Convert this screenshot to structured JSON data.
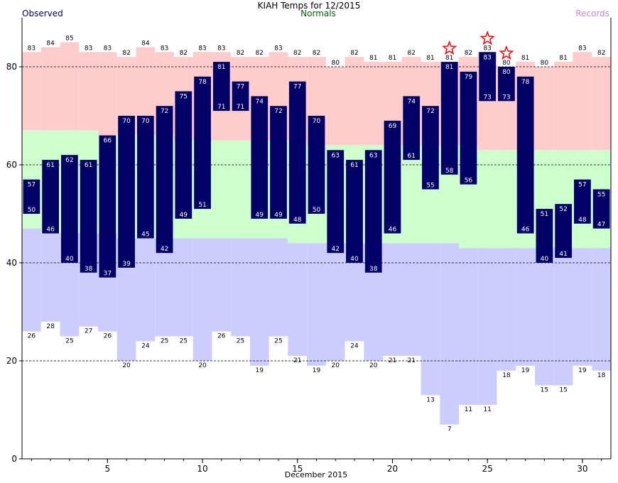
{
  "chart_data": {
    "type": "bar",
    "title": "KIAH Temps for 12/2015",
    "xlabel": "December 2015",
    "ylabel": "",
    "legend": {
      "observed": "Observed",
      "normals": "Normals",
      "records": "Records"
    },
    "ylim": [
      0,
      90
    ],
    "xlim": [
      0.5,
      31.5
    ],
    "y_ticks": [
      0,
      20,
      40,
      60,
      80
    ],
    "x_ticks": [
      5,
      10,
      15,
      20,
      25,
      30
    ],
    "days": [
      1,
      2,
      3,
      4,
      5,
      6,
      7,
      8,
      9,
      10,
      11,
      12,
      13,
      14,
      15,
      16,
      17,
      18,
      19,
      20,
      21,
      22,
      23,
      24,
      25,
      26,
      27,
      28,
      29,
      30,
      31
    ],
    "series": [
      {
        "name": "Observed High",
        "values": [
          57,
          61,
          62,
          61,
          66,
          70,
          70,
          72,
          75,
          78,
          81,
          77,
          74,
          72,
          77,
          70,
          63,
          61,
          63,
          69,
          74,
          72,
          81,
          79,
          83,
          80,
          78,
          51,
          52,
          57,
          55
        ]
      },
      {
        "name": "Observed Low",
        "values": [
          50,
          46,
          40,
          38,
          37,
          39,
          45,
          42,
          49,
          51,
          71,
          71,
          49,
          49,
          48,
          50,
          42,
          40,
          38,
          46,
          61,
          55,
          58,
          56,
          73,
          73,
          46,
          40,
          41,
          48,
          47
        ]
      },
      {
        "name": "Record High",
        "values": [
          83,
          84,
          85,
          83,
          83,
          82,
          84,
          83,
          82,
          83,
          83,
          82,
          82,
          83,
          82,
          82,
          80,
          82,
          81,
          81,
          82,
          81,
          81,
          82,
          83,
          80,
          81,
          80,
          81,
          83,
          82
        ]
      },
      {
        "name": "Record Low",
        "values": [
          26,
          28,
          25,
          27,
          26,
          20,
          24,
          25,
          25,
          20,
          26,
          25,
          19,
          25,
          21,
          19,
          20,
          24,
          20,
          21,
          21,
          13,
          7,
          11,
          11,
          18,
          19,
          15,
          15,
          19,
          18
        ]
      },
      {
        "name": "Normal High",
        "values": [
          67,
          67,
          67,
          67,
          66,
          66,
          66,
          66,
          65,
          65,
          65,
          65,
          65,
          65,
          65,
          64,
          64,
          64,
          64,
          64,
          64,
          64,
          64,
          64,
          63,
          63,
          63,
          63,
          63,
          63,
          63
        ]
      },
      {
        "name": "Normal Low",
        "values": [
          47,
          46,
          46,
          46,
          46,
          45,
          45,
          45,
          45,
          45,
          45,
          45,
          45,
          45,
          44,
          44,
          44,
          44,
          44,
          44,
          44,
          44,
          44,
          43,
          43,
          43,
          43,
          43,
          43,
          43,
          43
        ]
      }
    ],
    "record_days": [
      23,
      25,
      26
    ],
    "colors": {
      "observed": "#000066",
      "observed_text": "#ffffff",
      "record_band": "#ffcccc",
      "normal_band": "#ccffcc",
      "low_band": "#ccccff",
      "normals_label": "#006600",
      "records_label": "#cc88cc",
      "star": "#ee1111",
      "gridline": "#000000"
    },
    "grid": true,
    "legend_placement": "top"
  }
}
